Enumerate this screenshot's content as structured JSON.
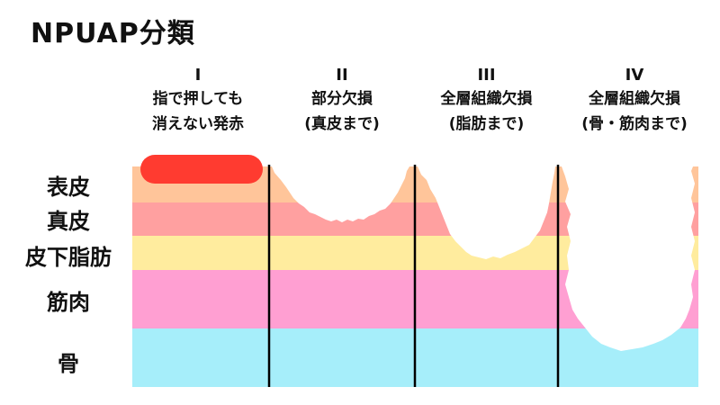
{
  "title": "NPUAP分類",
  "stages": [
    {
      "num": "I",
      "line1": "指で押しても",
      "line2": "消えない発赤"
    },
    {
      "num": "II",
      "line1": "部分欠損",
      "line2": "(真皮まで)"
    },
    {
      "num": "III",
      "line1": "全層組織欠損",
      "line2": "(脂肪まで)"
    },
    {
      "num": "IV",
      "line1": "全層組織欠損",
      "line2": "(骨・筋肉まで)"
    }
  ],
  "layers": [
    {
      "name": "表皮",
      "color": "#ffc59a"
    },
    {
      "name": "真皮",
      "color": "#ffa0a0"
    },
    {
      "name": "皮下脂肪",
      "color": "#ffec9e"
    },
    {
      "name": "筋肉",
      "color": "#ff9fd2"
    },
    {
      "name": "骨",
      "color": "#a6eefa"
    }
  ],
  "colors": {
    "redness": "#ff3b30",
    "divider": "#000000",
    "wound": "#ffffff"
  }
}
